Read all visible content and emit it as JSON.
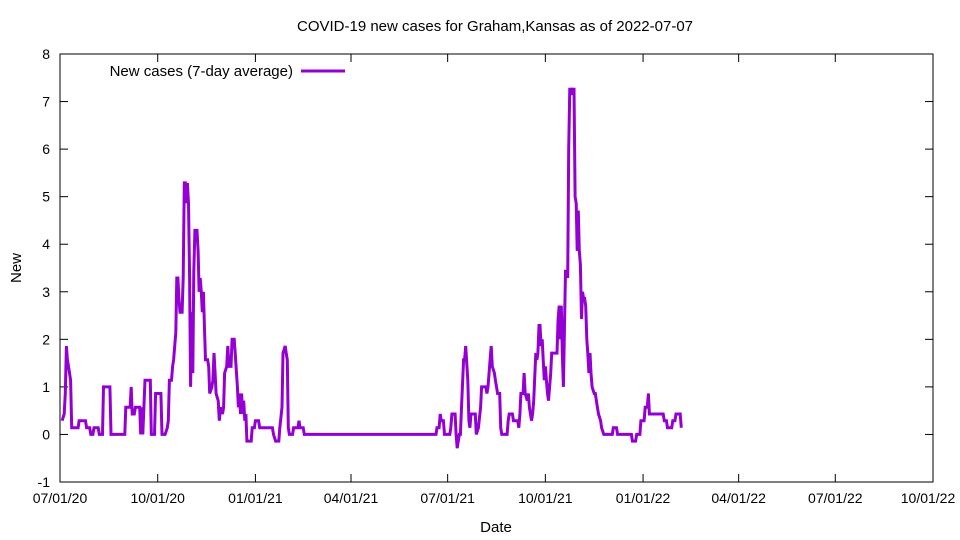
{
  "chart_data": {
    "type": "line",
    "title": "COVID-19 new cases for Graham,Kansas as of 2022-07-07",
    "xlabel": "Date",
    "ylabel": "New",
    "ylim": [
      -1,
      8
    ],
    "yticks": [
      "-1",
      "0",
      "1",
      "2",
      "3",
      "4",
      "5",
      "6",
      "7",
      "8"
    ],
    "xlim": [
      "2020-07-01",
      "2022-10-01"
    ],
    "xticks": [
      {
        "date": "2020-07-01",
        "label": "07/01/20"
      },
      {
        "date": "2020-10-01",
        "label": "10/01/20"
      },
      {
        "date": "2021-01-01",
        "label": "01/01/21"
      },
      {
        "date": "2021-04-01",
        "label": "04/01/21"
      },
      {
        "date": "2021-07-01",
        "label": "07/01/21"
      },
      {
        "date": "2021-10-01",
        "label": "10/01/21"
      },
      {
        "date": "2022-01-01",
        "label": "01/01/22"
      },
      {
        "date": "2022-04-01",
        "label": "04/01/22"
      },
      {
        "date": "2022-07-01",
        "label": "07/01/22"
      },
      {
        "date": "2022-10-01",
        "label": "10/01/22"
      }
    ],
    "grid": false,
    "legend_position": "top-left",
    "series": [
      {
        "name": "New cases (7-day average)",
        "color": "#9400d3",
        "points": [
          [
            "2020-07-03",
            0.29
          ],
          [
            "2020-07-05",
            0.43
          ],
          [
            "2020-07-06",
            0.86
          ],
          [
            "2020-07-07",
            1.86
          ],
          [
            "2020-07-08",
            1.57
          ],
          [
            "2020-07-09",
            1.43
          ],
          [
            "2020-07-11",
            1.14
          ],
          [
            "2020-07-12",
            0.14
          ],
          [
            "2020-07-18",
            0.14
          ],
          [
            "2020-07-19",
            0.29
          ],
          [
            "2020-07-25",
            0.29
          ],
          [
            "2020-07-26",
            0.14
          ],
          [
            "2020-07-29",
            0.14
          ],
          [
            "2020-07-30",
            0
          ],
          [
            "2020-08-01",
            0
          ],
          [
            "2020-08-02",
            0.14
          ],
          [
            "2020-08-06",
            0.14
          ],
          [
            "2020-08-07",
            0
          ],
          [
            "2020-08-10",
            0
          ],
          [
            "2020-08-11",
            1
          ],
          [
            "2020-08-17",
            1
          ],
          [
            "2020-08-18",
            0
          ],
          [
            "2020-08-31",
            0
          ],
          [
            "2020-09-01",
            0.57
          ],
          [
            "2020-09-05",
            0.57
          ],
          [
            "2020-09-06",
            1
          ],
          [
            "2020-09-07",
            0.43
          ],
          [
            "2020-09-09",
            0.43
          ],
          [
            "2020-09-10",
            0.57
          ],
          [
            "2020-09-14",
            0.57
          ],
          [
            "2020-09-15",
            0
          ],
          [
            "2020-09-16",
            0.57
          ],
          [
            "2020-09-17",
            0
          ],
          [
            "2020-09-19",
            1.14
          ],
          [
            "2020-09-24",
            1.14
          ],
          [
            "2020-09-25",
            0
          ],
          [
            "2020-09-28",
            0
          ],
          [
            "2020-09-29",
            0.86
          ],
          [
            "2020-10-04",
            0.86
          ],
          [
            "2020-10-05",
            0
          ],
          [
            "2020-10-08",
            0
          ],
          [
            "2020-10-10",
            0.14
          ],
          [
            "2020-10-11",
            0.29
          ],
          [
            "2020-10-12",
            1.14
          ],
          [
            "2020-10-14",
            1.14
          ],
          [
            "2020-10-15",
            1.43
          ],
          [
            "2020-10-16",
            1.57
          ],
          [
            "2020-10-18",
            2.14
          ],
          [
            "2020-10-19",
            3.29
          ],
          [
            "2020-10-20",
            3.29
          ],
          [
            "2020-10-21",
            2.86
          ],
          [
            "2020-10-22",
            2.57
          ],
          [
            "2020-10-24",
            2.57
          ],
          [
            "2020-10-25",
            3.29
          ],
          [
            "2020-10-26",
            5.29
          ],
          [
            "2020-10-27",
            5.29
          ],
          [
            "2020-10-28",
            4.86
          ],
          [
            "2020-10-29",
            5.29
          ],
          [
            "2020-10-30",
            4.86
          ],
          [
            "2020-10-31",
            3.29
          ],
          [
            "2020-11-01",
            1
          ],
          [
            "2020-11-02",
            2.57
          ],
          [
            "2020-11-03",
            1.29
          ],
          [
            "2020-11-04",
            3.43
          ],
          [
            "2020-11-05",
            4.29
          ],
          [
            "2020-11-07",
            4.29
          ],
          [
            "2020-11-08",
            3.86
          ],
          [
            "2020-11-09",
            3
          ],
          [
            "2020-11-10",
            3.29
          ],
          [
            "2020-11-11",
            3
          ],
          [
            "2020-11-12",
            2.57
          ],
          [
            "2020-11-13",
            3
          ],
          [
            "2020-11-14",
            2.29
          ],
          [
            "2020-11-15",
            1.57
          ],
          [
            "2020-11-17",
            1.57
          ],
          [
            "2020-11-18",
            1.43
          ],
          [
            "2020-11-19",
            0.86
          ],
          [
            "2020-11-21",
            1
          ],
          [
            "2020-11-22",
            1.14
          ],
          [
            "2020-11-23",
            1.71
          ],
          [
            "2020-11-24",
            1.29
          ],
          [
            "2020-11-25",
            0.86
          ],
          [
            "2020-11-27",
            0.71
          ],
          [
            "2020-11-28",
            0.29
          ],
          [
            "2020-11-29",
            0.57
          ],
          [
            "2020-12-01",
            0.43
          ],
          [
            "2020-12-02",
            0.57
          ],
          [
            "2020-12-03",
            1.29
          ],
          [
            "2020-12-05",
            1.43
          ],
          [
            "2020-12-06",
            1.86
          ],
          [
            "2020-12-07",
            1.43
          ],
          [
            "2020-12-09",
            1.43
          ],
          [
            "2020-12-10",
            2
          ],
          [
            "2020-12-12",
            2
          ],
          [
            "2020-12-13",
            1.71
          ],
          [
            "2020-12-15",
            1
          ],
          [
            "2020-12-16",
            0.57
          ],
          [
            "2020-12-17",
            0.86
          ],
          [
            "2020-12-18",
            0.43
          ],
          [
            "2020-12-19",
            0.86
          ],
          [
            "2020-12-20",
            0.43
          ],
          [
            "2020-12-21",
            0.71
          ],
          [
            "2020-12-22",
            0.29
          ],
          [
            "2020-12-23",
            0.43
          ],
          [
            "2020-12-24",
            -0.14
          ],
          [
            "2020-12-28",
            -0.14
          ],
          [
            "2020-12-29",
            0.14
          ],
          [
            "2020-12-31",
            0.14
          ],
          [
            "2021-01-01",
            0.29
          ],
          [
            "2021-01-04",
            0.29
          ],
          [
            "2021-01-05",
            0.14
          ],
          [
            "2021-01-17",
            0.14
          ],
          [
            "2021-01-18",
            0
          ],
          [
            "2021-01-20",
            -0.14
          ],
          [
            "2021-01-23",
            -0.14
          ],
          [
            "2021-01-24",
            0.14
          ],
          [
            "2021-01-26",
            0.57
          ],
          [
            "2021-01-27",
            1.71
          ],
          [
            "2021-01-29",
            1.86
          ],
          [
            "2021-01-30",
            1.71
          ],
          [
            "2021-01-31",
            1.57
          ],
          [
            "2021-02-01",
            0.14
          ],
          [
            "2021-02-02",
            0
          ],
          [
            "2021-02-05",
            0
          ],
          [
            "2021-02-06",
            0.14
          ],
          [
            "2021-02-10",
            0.14
          ],
          [
            "2021-02-11",
            0.29
          ],
          [
            "2021-02-12",
            0.14
          ],
          [
            "2021-02-15",
            0.14
          ],
          [
            "2021-02-16",
            0
          ],
          [
            "2021-06-20",
            0
          ],
          [
            "2021-06-21",
            0.14
          ],
          [
            "2021-06-23",
            0.14
          ],
          [
            "2021-06-24",
            0.43
          ],
          [
            "2021-06-25",
            0.29
          ],
          [
            "2021-06-27",
            0.29
          ],
          [
            "2021-06-28",
            0
          ],
          [
            "2021-07-03",
            0
          ],
          [
            "2021-07-04",
            0.14
          ],
          [
            "2021-07-05",
            0.43
          ],
          [
            "2021-07-08",
            0.43
          ],
          [
            "2021-07-09",
            0
          ],
          [
            "2021-07-10",
            -0.29
          ],
          [
            "2021-07-11",
            -0.14
          ],
          [
            "2021-07-12",
            0
          ],
          [
            "2021-07-13",
            0
          ],
          [
            "2021-07-14",
            0.57
          ],
          [
            "2021-07-16",
            1.57
          ],
          [
            "2021-07-17",
            1.57
          ],
          [
            "2021-07-18",
            1.86
          ],
          [
            "2021-07-20",
            1.14
          ],
          [
            "2021-07-21",
            0.29
          ],
          [
            "2021-07-22",
            0.14
          ],
          [
            "2021-07-23",
            0.43
          ],
          [
            "2021-07-27",
            0.43
          ],
          [
            "2021-07-28",
            0
          ],
          [
            "2021-07-30",
            0.14
          ],
          [
            "2021-08-01",
            0.57
          ],
          [
            "2021-08-02",
            1
          ],
          [
            "2021-08-06",
            1
          ],
          [
            "2021-08-07",
            0.86
          ],
          [
            "2021-08-08",
            1
          ],
          [
            "2021-08-10",
            1.57
          ],
          [
            "2021-08-11",
            1.86
          ],
          [
            "2021-08-12",
            1.43
          ],
          [
            "2021-08-14",
            1.29
          ],
          [
            "2021-08-15",
            1.14
          ],
          [
            "2021-08-17",
            0.86
          ],
          [
            "2021-08-19",
            0.86
          ],
          [
            "2021-08-20",
            0.14
          ],
          [
            "2021-08-21",
            0
          ],
          [
            "2021-08-26",
            0
          ],
          [
            "2021-08-27",
            0.29
          ],
          [
            "2021-08-28",
            0.43
          ],
          [
            "2021-08-31",
            0.43
          ],
          [
            "2021-09-01",
            0.29
          ],
          [
            "2021-09-05",
            0.29
          ],
          [
            "2021-09-06",
            0.14
          ],
          [
            "2021-09-07",
            0.43
          ],
          [
            "2021-09-08",
            0.86
          ],
          [
            "2021-09-10",
            0.86
          ],
          [
            "2021-09-11",
            1.29
          ],
          [
            "2021-09-12",
            0.86
          ],
          [
            "2021-09-14",
            0.71
          ],
          [
            "2021-09-15",
            0.86
          ],
          [
            "2021-09-16",
            0.57
          ],
          [
            "2021-09-18",
            0.29
          ],
          [
            "2021-09-19",
            0.43
          ],
          [
            "2021-09-20",
            0.71
          ],
          [
            "2021-09-22",
            1.71
          ],
          [
            "2021-09-23",
            1.57
          ],
          [
            "2021-09-24",
            1.71
          ],
          [
            "2021-09-25",
            2.29
          ],
          [
            "2021-09-26",
            2.29
          ],
          [
            "2021-09-27",
            1.86
          ],
          [
            "2021-09-28",
            2
          ],
          [
            "2021-09-29",
            1.57
          ],
          [
            "2021-09-30",
            1.14
          ],
          [
            "2021-10-01",
            1.43
          ],
          [
            "2021-10-02",
            1.14
          ],
          [
            "2021-10-03",
            0.86
          ],
          [
            "2021-10-04",
            0.71
          ],
          [
            "2021-10-06",
            1.29
          ],
          [
            "2021-10-07",
            1.71
          ],
          [
            "2021-10-12",
            1.71
          ],
          [
            "2021-10-13",
            2.43
          ],
          [
            "2021-10-14",
            2.71
          ],
          [
            "2021-10-15",
            2
          ],
          [
            "2021-10-16",
            2.71
          ],
          [
            "2021-10-17",
            1.71
          ],
          [
            "2021-10-18",
            1
          ],
          [
            "2021-10-19",
            2.29
          ],
          [
            "2021-10-20",
            3.43
          ],
          [
            "2021-10-21",
            3.43
          ],
          [
            "2021-10-22",
            3.29
          ],
          [
            "2021-10-23",
            6
          ],
          [
            "2021-10-24",
            7.29
          ],
          [
            "2021-10-25",
            7.14
          ],
          [
            "2021-10-26",
            7.29
          ],
          [
            "2021-10-27",
            7.14
          ],
          [
            "2021-10-28",
            7.29
          ],
          [
            "2021-10-29",
            5
          ],
          [
            "2021-10-30",
            4.86
          ],
          [
            "2021-10-31",
            3.86
          ],
          [
            "2021-11-01",
            4.71
          ],
          [
            "2021-11-02",
            3.86
          ],
          [
            "2021-11-03",
            3.57
          ],
          [
            "2021-11-04",
            2.43
          ],
          [
            "2021-11-05",
            3
          ],
          [
            "2021-11-06",
            2.86
          ],
          [
            "2021-11-07",
            2.86
          ],
          [
            "2021-11-08",
            2.71
          ],
          [
            "2021-11-09",
            2
          ],
          [
            "2021-11-10",
            1.71
          ],
          [
            "2021-11-11",
            1.29
          ],
          [
            "2021-11-12",
            1.71
          ],
          [
            "2021-11-13",
            1.29
          ],
          [
            "2021-11-14",
            1
          ],
          [
            "2021-11-16",
            0.86
          ],
          [
            "2021-11-17",
            0.86
          ],
          [
            "2021-11-19",
            0.57
          ],
          [
            "2021-11-20",
            0.43
          ],
          [
            "2021-11-22",
            0.29
          ],
          [
            "2021-11-23",
            0.14
          ],
          [
            "2021-11-25",
            0
          ],
          [
            "2021-12-03",
            0
          ],
          [
            "2021-12-04",
            0.14
          ],
          [
            "2021-12-07",
            0.14
          ],
          [
            "2021-12-08",
            0
          ],
          [
            "2021-12-21",
            0
          ],
          [
            "2021-12-22",
            -0.14
          ],
          [
            "2021-12-25",
            -0.14
          ],
          [
            "2021-12-26",
            0
          ],
          [
            "2021-12-29",
            0
          ],
          [
            "2021-12-30",
            0.29
          ],
          [
            "2022-01-02",
            0.29
          ],
          [
            "2022-01-03",
            0.57
          ],
          [
            "2022-01-05",
            0.57
          ],
          [
            "2022-01-06",
            0.86
          ],
          [
            "2022-01-07",
            0.43
          ],
          [
            "2022-01-20",
            0.43
          ],
          [
            "2022-01-21",
            0.29
          ],
          [
            "2022-01-23",
            0.29
          ],
          [
            "2022-01-24",
            0.14
          ],
          [
            "2022-01-28",
            0.14
          ],
          [
            "2022-01-29",
            0.29
          ],
          [
            "2022-01-31",
            0.29
          ],
          [
            "2022-02-01",
            0.43
          ],
          [
            "2022-02-05",
            0.43
          ],
          [
            "2022-02-06",
            0.14
          ]
        ]
      }
    ]
  }
}
